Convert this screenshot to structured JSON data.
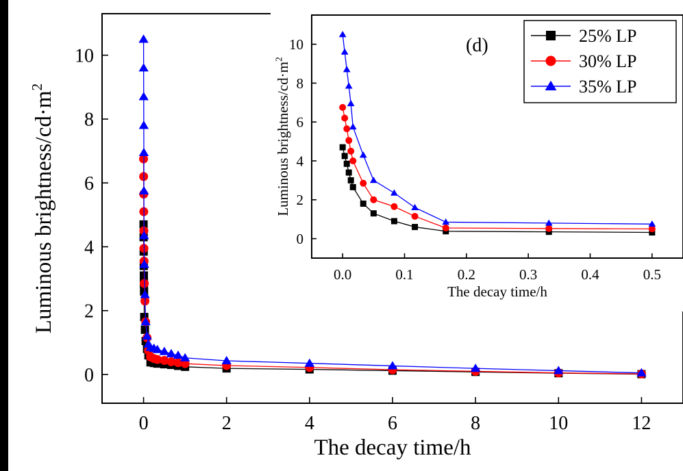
{
  "chart_data": [
    {
      "type": "line",
      "panel": "main",
      "xlabel": "The decay time/h",
      "ylabel": "Luminous brightness/cd·m",
      "ylabel_superscript": "2",
      "xlim": [
        -1,
        13
      ],
      "ylim": [
        -0.9,
        11.3
      ],
      "xticks": [
        0,
        2,
        4,
        6,
        8,
        10,
        12
      ],
      "yticks": [
        0,
        2,
        4,
        6,
        8,
        10
      ],
      "series": [
        {
          "name": "25% LP",
          "color": "#000000",
          "marker": "square",
          "x": [
            0,
            0.0017,
            0.0033,
            0.005,
            0.0067,
            0.0083,
            0.0117,
            0.0167,
            0.0333,
            0.05,
            0.0833,
            0.1167,
            0.1667,
            0.25,
            0.333,
            0.5,
            0.667,
            0.833,
            1,
            2,
            4,
            6,
            8,
            10,
            12
          ],
          "y": [
            4.7,
            4.3,
            3.85,
            3.4,
            3.1,
            2.85,
            2.6,
            1.8,
            1.4,
            1.05,
            0.8,
            0.6,
            0.38,
            0.36,
            0.34,
            0.32,
            0.3,
            0.27,
            0.24,
            0.19,
            0.16,
            0.12,
            0.08,
            0.04,
            0.01
          ]
        },
        {
          "name": "30% LP",
          "color": "#ff0000",
          "marker": "circle",
          "x": [
            0,
            0.0017,
            0.0033,
            0.005,
            0.0067,
            0.0083,
            0.0117,
            0.0167,
            0.0333,
            0.05,
            0.0833,
            0.1167,
            0.1667,
            0.25,
            0.333,
            0.5,
            0.667,
            0.833,
            1,
            2,
            4,
            6,
            8,
            10,
            12
          ],
          "y": [
            6.75,
            6.2,
            5.65,
            5.1,
            4.5,
            3.95,
            3.55,
            2.85,
            2.3,
            1.65,
            1.15,
            0.75,
            0.55,
            0.5,
            0.47,
            0.44,
            0.4,
            0.37,
            0.34,
            0.28,
            0.22,
            0.15,
            0.1,
            0.05,
            0.02
          ]
        },
        {
          "name": "35% LP",
          "color": "#0000ff",
          "marker": "triangle",
          "x": [
            0,
            0.0017,
            0.0033,
            0.005,
            0.0067,
            0.0083,
            0.0117,
            0.0167,
            0.0333,
            0.05,
            0.0833,
            0.1167,
            0.1667,
            0.25,
            0.333,
            0.5,
            0.667,
            0.833,
            1,
            2,
            4,
            6,
            8,
            10,
            12
          ],
          "y": [
            10.5,
            9.6,
            8.7,
            7.8,
            6.95,
            5.75,
            4.35,
            3.45,
            2.5,
            1.65,
            1.2,
            0.95,
            0.85,
            0.82,
            0.78,
            0.72,
            0.65,
            0.6,
            0.52,
            0.43,
            0.35,
            0.27,
            0.19,
            0.12,
            0.05
          ]
        }
      ]
    },
    {
      "type": "line",
      "panel": "inset",
      "annotation": "(d)",
      "xlabel": "The decay time/h",
      "ylabel": "Luminous brightness/cd·m",
      "ylabel_superscript": "2",
      "xlim": [
        -0.05,
        0.55
      ],
      "ylim": [
        -1.0,
        11.5
      ],
      "xticks": [
        0.0,
        0.1,
        0.2,
        0.3,
        0.4,
        0.5
      ],
      "xtick_labels": [
        "0.0",
        "0.1",
        "0.2",
        "0.3",
        "0.4",
        "0.5"
      ],
      "yticks": [
        0,
        2,
        4,
        6,
        8,
        10
      ],
      "legend_position": "top-right",
      "series": [
        {
          "name": "25% LP",
          "color": "#000000",
          "marker": "square",
          "x": [
            0,
            0.0033,
            0.0067,
            0.01,
            0.0133,
            0.0167,
            0.0333,
            0.05,
            0.0833,
            0.1167,
            0.1667,
            0.3333,
            0.5
          ],
          "y": [
            4.7,
            4.25,
            3.85,
            3.4,
            3.0,
            2.65,
            1.8,
            1.3,
            0.9,
            0.6,
            0.38,
            0.35,
            0.32
          ]
        },
        {
          "name": "30% LP",
          "color": "#ff0000",
          "marker": "circle",
          "x": [
            0,
            0.0033,
            0.0067,
            0.01,
            0.0133,
            0.0167,
            0.0333,
            0.05,
            0.0833,
            0.1167,
            0.1667,
            0.3333,
            0.5
          ],
          "y": [
            6.75,
            6.2,
            5.65,
            5.05,
            4.5,
            4.0,
            2.85,
            2.0,
            1.65,
            1.15,
            0.55,
            0.52,
            0.5
          ]
        },
        {
          "name": "35% LP",
          "color": "#0000ff",
          "marker": "triangle",
          "x": [
            0,
            0.0033,
            0.0067,
            0.01,
            0.0133,
            0.0167,
            0.0333,
            0.05,
            0.0833,
            0.1167,
            0.1667,
            0.3333,
            0.5
          ],
          "y": [
            10.5,
            9.6,
            8.7,
            7.85,
            6.95,
            5.75,
            4.3,
            3.0,
            2.35,
            1.6,
            0.85,
            0.8,
            0.75
          ]
        }
      ]
    }
  ]
}
